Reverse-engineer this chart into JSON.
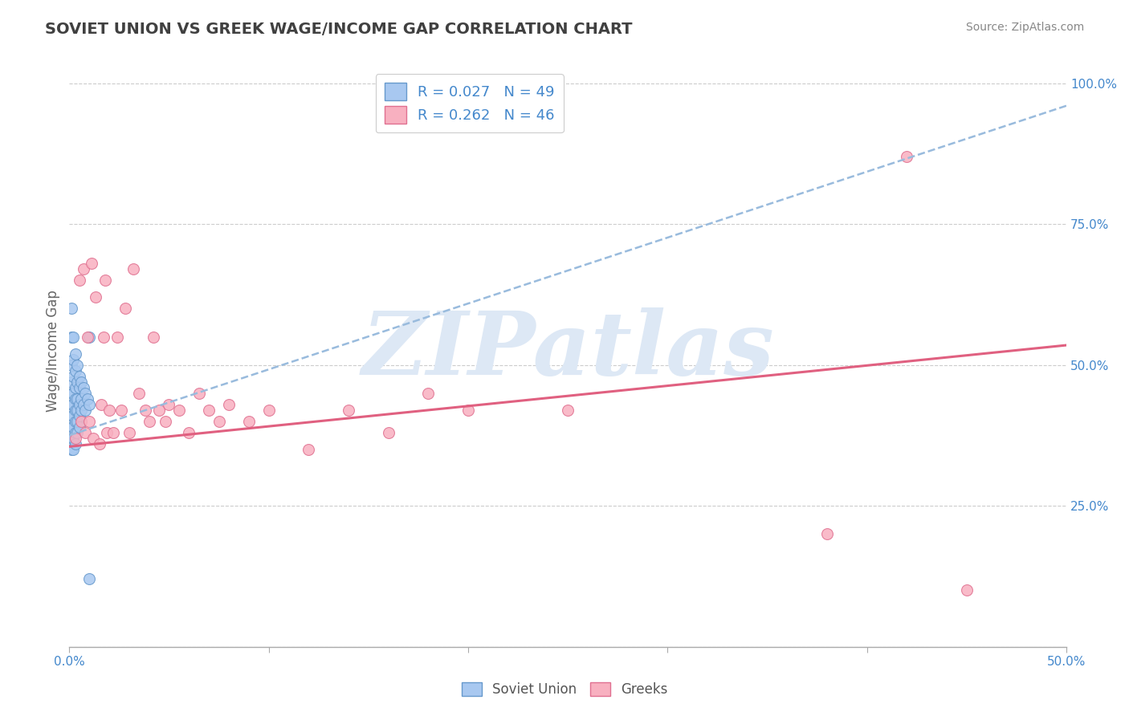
{
  "title": "SOVIET UNION VS GREEK WAGE/INCOME GAP CORRELATION CHART",
  "source_text": "Source: ZipAtlas.com",
  "ylabel": "Wage/Income Gap",
  "xlim": [
    0.0,
    0.5
  ],
  "ylim": [
    0.0,
    1.05
  ],
  "ytick_positions": [
    0.0,
    0.25,
    0.5,
    0.75,
    1.0
  ],
  "ytick_labels": [
    "",
    "25.0%",
    "50.0%",
    "75.0%",
    "100.0%"
  ],
  "xtick_positions": [
    0.0,
    0.1,
    0.2,
    0.3,
    0.4,
    0.5
  ],
  "xtick_labels": [
    "0.0%",
    "",
    "",
    "",
    "",
    "50.0%"
  ],
  "soviet_color": "#a8c8f0",
  "soviet_edge_color": "#6699cc",
  "greek_color": "#f8b0c0",
  "greek_edge_color": "#e07090",
  "trend_soviet_color": "#99bbdd",
  "trend_greek_color": "#e06080",
  "soviet_R": 0.027,
  "soviet_N": 49,
  "greek_R": 0.262,
  "greek_N": 46,
  "watermark": "ZIPatlas",
  "watermark_color": "#dde8f5",
  "soviet_legend": "Soviet Union",
  "greek_legend": "Greeks",
  "soviet_x": [
    0.001,
    0.001,
    0.001,
    0.001,
    0.001,
    0.001,
    0.001,
    0.001,
    0.001,
    0.001,
    0.002,
    0.002,
    0.002,
    0.002,
    0.002,
    0.002,
    0.002,
    0.002,
    0.002,
    0.003,
    0.003,
    0.003,
    0.003,
    0.003,
    0.003,
    0.003,
    0.003,
    0.004,
    0.004,
    0.004,
    0.004,
    0.004,
    0.004,
    0.005,
    0.005,
    0.005,
    0.005,
    0.005,
    0.006,
    0.006,
    0.006,
    0.007,
    0.007,
    0.008,
    0.008,
    0.009,
    0.01,
    0.01,
    0.01
  ],
  "soviet_y": [
    0.6,
    0.55,
    0.5,
    0.47,
    0.45,
    0.43,
    0.41,
    0.39,
    0.37,
    0.35,
    0.55,
    0.51,
    0.48,
    0.45,
    0.43,
    0.41,
    0.39,
    0.37,
    0.35,
    0.52,
    0.49,
    0.46,
    0.44,
    0.42,
    0.4,
    0.38,
    0.36,
    0.5,
    0.47,
    0.44,
    0.42,
    0.4,
    0.38,
    0.48,
    0.46,
    0.43,
    0.41,
    0.39,
    0.47,
    0.44,
    0.42,
    0.46,
    0.43,
    0.45,
    0.42,
    0.44,
    0.55,
    0.43,
    0.12
  ],
  "greek_x": [
    0.003,
    0.005,
    0.006,
    0.007,
    0.008,
    0.009,
    0.01,
    0.011,
    0.012,
    0.013,
    0.015,
    0.016,
    0.017,
    0.018,
    0.019,
    0.02,
    0.022,
    0.024,
    0.026,
    0.028,
    0.03,
    0.032,
    0.035,
    0.038,
    0.04,
    0.042,
    0.045,
    0.048,
    0.05,
    0.055,
    0.06,
    0.065,
    0.07,
    0.075,
    0.08,
    0.09,
    0.1,
    0.12,
    0.14,
    0.16,
    0.18,
    0.2,
    0.25,
    0.38,
    0.42,
    0.45
  ],
  "greek_y": [
    0.37,
    0.65,
    0.4,
    0.67,
    0.38,
    0.55,
    0.4,
    0.68,
    0.37,
    0.62,
    0.36,
    0.43,
    0.55,
    0.65,
    0.38,
    0.42,
    0.38,
    0.55,
    0.42,
    0.6,
    0.38,
    0.67,
    0.45,
    0.42,
    0.4,
    0.55,
    0.42,
    0.4,
    0.43,
    0.42,
    0.38,
    0.45,
    0.42,
    0.4,
    0.43,
    0.4,
    0.42,
    0.35,
    0.42,
    0.38,
    0.45,
    0.42,
    0.42,
    0.2,
    0.87,
    0.1
  ],
  "background_color": "#ffffff",
  "grid_color": "#cccccc",
  "title_color": "#404040",
  "tick_label_color": "#4488cc",
  "ylabel_color": "#666666"
}
